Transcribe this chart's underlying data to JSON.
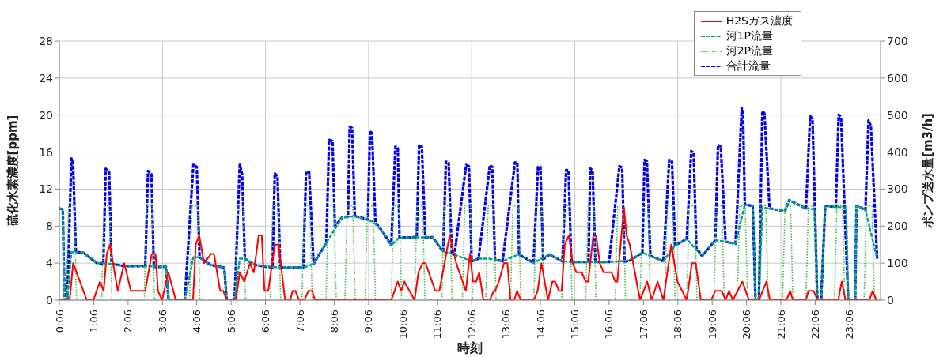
{
  "chart_data": {
    "type": "line",
    "xlabel": "時刻",
    "ylabel": "硫化水素濃度[ppm]",
    "y2label": "ポンプ送水量[m3/h]",
    "xlim": [
      0.1,
      24
    ],
    "xticks": [
      {
        "value": 0.1,
        "label": "0:06"
      },
      {
        "value": 1.1,
        "label": "1:06"
      },
      {
        "value": 2.1,
        "label": "2:06"
      },
      {
        "value": 3.1,
        "label": "3:06"
      },
      {
        "value": 4.1,
        "label": "4:06"
      },
      {
        "value": 5.1,
        "label": "5:06"
      },
      {
        "value": 6.1,
        "label": "6:06"
      },
      {
        "value": 7.1,
        "label": "7:06"
      },
      {
        "value": 8.1,
        "label": "8:06"
      },
      {
        "value": 9.1,
        "label": "9:06"
      },
      {
        "value": 10.1,
        "label": "10:06"
      },
      {
        "value": 11.1,
        "label": "11:06"
      },
      {
        "value": 12.1,
        "label": "12:06"
      },
      {
        "value": 13.1,
        "label": "13:06"
      },
      {
        "value": 14.1,
        "label": "14:06"
      },
      {
        "value": 15.1,
        "label": "15:06"
      },
      {
        "value": 16.1,
        "label": "16:06"
      },
      {
        "value": 17.1,
        "label": "17:06"
      },
      {
        "value": 18.1,
        "label": "18:06"
      },
      {
        "value": 19.1,
        "label": "19:06"
      },
      {
        "value": 20.1,
        "label": "20:06"
      },
      {
        "value": 21.1,
        "label": "21:06"
      },
      {
        "value": 22.1,
        "label": "22:06"
      },
      {
        "value": 23.1,
        "label": "23:06"
      }
    ],
    "ylim": [
      0,
      28
    ],
    "yticks": [
      0,
      4,
      8,
      12,
      16,
      20,
      24,
      28
    ],
    "y2lim": [
      0,
      700
    ],
    "y2ticks": [
      0,
      100,
      200,
      300,
      400,
      500,
      600,
      700
    ],
    "grid": true,
    "legend": "top right",
    "marker": "none",
    "series": [
      {
        "name": "H2Sガス濃度",
        "color": "#ff0000",
        "line_style": "solid",
        "x": [
          0.1,
          0.4,
          0.5,
          0.9,
          1.09,
          1.28,
          1.39,
          1.48,
          1.57,
          1.8,
          1.99,
          2.18,
          2.6,
          2.79,
          2.9,
          2.97,
          3.09,
          3.27,
          3.49,
          3.99,
          4.07,
          4.17,
          4.31,
          4.52,
          4.6,
          4.78,
          4.87,
          4.97,
          5.24,
          5.35,
          5.48,
          5.65,
          5.76,
          5.9,
          5.99,
          6.07,
          6.18,
          6.37,
          6.48,
          6.67,
          6.82,
          6.89,
          6.97,
          7.08,
          7.23,
          7.35,
          7.46,
          7.54,
          9.76,
          9.95,
          10.05,
          10.14,
          10.44,
          10.55,
          10.67,
          10.76,
          11.04,
          11.16,
          11.46,
          11.65,
          11.93,
          12.05,
          12.14,
          12.23,
          12.32,
          12.44,
          12.63,
          12.74,
          12.78,
          12.89,
          13.04,
          13.14,
          13.23,
          13.34,
          13.42,
          13.53,
          13.91,
          14.02,
          14.13,
          14.32,
          14.45,
          14.53,
          14.64,
          14.72,
          14.81,
          14.93,
          15.04,
          15.15,
          15.3,
          15.42,
          15.49,
          15.64,
          15.72,
          15.83,
          15.94,
          16.17,
          16.28,
          16.34,
          16.53,
          16.61,
          16.7,
          17.0,
          17.21,
          17.34,
          17.51,
          17.68,
          17.91,
          18.09,
          18.36,
          18.51,
          18.62,
          18.77,
          19.07,
          19.19,
          19.38,
          19.49,
          19.59,
          19.7,
          19.98,
          20.17,
          20.46,
          20.68,
          20.78,
          21.26,
          21.37,
          21.45,
          21.83,
          21.9,
          22.05,
          22.17,
          22.77,
          22.87,
          22.98,
          23.67,
          23.77,
          23.88
        ],
        "values": [
          0,
          0,
          4,
          0,
          0,
          2,
          1,
          5,
          6,
          1,
          4,
          1,
          1,
          5,
          5,
          1,
          0,
          3,
          0,
          0,
          6,
          7,
          4,
          5,
          5,
          1,
          1,
          0,
          0,
          3,
          2,
          4,
          3,
          7,
          7,
          1,
          1,
          6,
          6,
          0,
          0,
          1,
          1,
          0,
          0,
          1,
          1,
          0,
          0,
          2,
          1,
          2,
          0,
          3,
          4,
          4,
          1,
          1,
          7,
          4,
          1,
          5,
          2,
          2,
          3,
          0,
          0,
          1,
          1,
          2,
          4,
          4,
          0,
          0,
          1,
          0,
          0,
          1,
          4,
          0,
          2,
          2,
          1,
          1,
          6,
          7,
          4,
          3,
          3,
          2,
          2,
          7,
          7,
          4,
          3,
          3,
          2,
          2,
          10,
          7,
          6,
          0,
          2,
          0,
          2,
          0,
          6,
          2,
          0,
          4,
          4,
          0,
          0,
          1,
          1,
          0,
          1,
          0,
          2,
          0,
          0,
          2,
          0,
          0,
          1,
          0,
          0,
          1,
          1,
          0,
          0,
          2,
          0,
          0,
          1,
          0
        ]
      },
      {
        "name": "河1P流量",
        "color": "#00a080",
        "line_style": "dashed",
        "axis": "y2",
        "x": [
          0.1,
          0.2,
          0.25,
          0.33,
          0.45,
          0.8,
          1.2,
          1.5,
          2.0,
          2.6,
          3.2,
          3.28,
          3.75,
          4.0,
          4.18,
          4.5,
          4.9,
          4.97,
          5.2,
          5.35,
          5.5,
          5.8,
          6.5,
          7.2,
          7.5,
          7.87,
          8.33,
          8.7,
          9.23,
          9.53,
          9.76,
          9.99,
          10.96,
          11.27,
          11.6,
          12.1,
          12.3,
          12.6,
          13.0,
          13.45,
          13.9,
          14.36,
          14.74,
          15.2,
          16.1,
          16.7,
          17.07,
          17.68,
          18.02,
          18.36,
          18.81,
          19.19,
          19.49,
          19.78,
          20.05,
          20.28,
          20.36,
          20.46,
          20.56,
          20.77,
          21.22,
          21.34,
          21.83,
          22.1,
          22.16,
          22.27,
          22.39,
          22.7,
          23.0,
          23.06,
          23.26,
          23.3,
          23.56,
          23.9
        ],
        "values": [
          248,
          245,
          0,
          0,
          130,
          128,
          100,
          99,
          92,
          92,
          90,
          0,
          0,
          116,
          116,
          95,
          88,
          0,
          0,
          112,
          112,
          95,
          88,
          88,
          98,
          155,
          223,
          227,
          212,
          183,
          148,
          169,
          170,
          131,
          123,
          105,
          112,
          112,
          105,
          123,
          101,
          123,
          105,
          103,
          103,
          107,
          128,
          105,
          148,
          165,
          119,
          162,
          158,
          152,
          258,
          255,
          0,
          0,
          250,
          248,
          240,
          270,
          248,
          245,
          0,
          0,
          255,
          252,
          250,
          0,
          0,
          255,
          244,
          112
        ]
      },
      {
        "name": "河2P流量",
        "color": "#33bb33",
        "line_style": "dotted",
        "axis": "y2",
        "x": [
          0.1,
          0.3,
          0.37,
          0.53,
          0.6,
          1.33,
          1.4,
          1.56,
          1.63,
          2.57,
          2.64,
          2.8,
          2.87,
          3.89,
          3.96,
          4.12,
          4.19,
          5.22,
          5.29,
          5.45,
          5.52,
          6.24,
          6.31,
          6.47,
          6.54,
          7.16,
          7.23,
          7.39,
          7.46,
          7.86,
          7.93,
          8.09,
          8.16,
          8.41,
          8.48,
          8.64,
          8.71,
          9.0,
          9.07,
          9.23,
          9.3,
          9.76,
          9.83,
          9.99,
          10.06,
          10.44,
          10.51,
          10.67,
          10.74,
          11.23,
          11.3,
          11.46,
          11.53,
          11.83,
          11.9,
          12.06,
          12.13,
          12.51,
          12.58,
          12.74,
          12.81,
          13.23,
          13.3,
          13.46,
          13.53,
          13.91,
          13.98,
          14.14,
          14.21,
          14.72,
          14.79,
          14.95,
          15.02,
          15.42,
          15.49,
          15.65,
          15.72,
          16.28,
          16.35,
          16.51,
          16.58,
          17.0,
          17.07,
          17.23,
          17.3,
          17.72,
          17.79,
          17.95,
          18.02,
          18.36,
          18.43,
          18.59,
          18.66,
          19.15,
          19.22,
          19.38,
          19.45,
          19.83,
          19.9,
          20.06,
          20.13,
          20.43,
          20.5,
          20.66,
          20.73,
          21.15,
          21.22,
          21.38,
          21.45,
          21.83,
          21.9,
          22.06,
          22.13,
          22.66,
          22.73,
          22.89,
          22.96,
          23.52,
          23.59,
          23.75,
          23.82,
          24.0
        ],
        "values": [
          0,
          0,
          255,
          255,
          0,
          0,
          255,
          255,
          0,
          0,
          255,
          255,
          0,
          0,
          255,
          255,
          0,
          0,
          255,
          255,
          0,
          0,
          255,
          255,
          0,
          0,
          255,
          255,
          0,
          0,
          255,
          255,
          0,
          0,
          255,
          255,
          0,
          0,
          255,
          255,
          0,
          0,
          255,
          255,
          0,
          0,
          255,
          255,
          0,
          0,
          255,
          255,
          0,
          0,
          255,
          255,
          0,
          0,
          255,
          255,
          0,
          0,
          255,
          255,
          0,
          0,
          255,
          255,
          0,
          0,
          255,
          255,
          0,
          0,
          255,
          255,
          0,
          0,
          255,
          255,
          0,
          0,
          255,
          255,
          0,
          0,
          255,
          255,
          0,
          0,
          255,
          255,
          0,
          0,
          255,
          255,
          0,
          0,
          255,
          255,
          0,
          0,
          255,
          255,
          0,
          0,
          255,
          255,
          0,
          0,
          255,
          255,
          0,
          0,
          255,
          255,
          0,
          0,
          255,
          255,
          0,
          0
        ]
      },
      {
        "name": "合計流量",
        "color": "#0000ee",
        "line_style": "dashed",
        "axis": "y2",
        "x": [
          0.1,
          0.2,
          0.25,
          0.33,
          0.45,
          0.5,
          0.58,
          0.8,
          1.2,
          1.38,
          1.45,
          1.55,
          1.62,
          2.0,
          2.6,
          2.68,
          2.78,
          2.85,
          3.2,
          3.28,
          3.75,
          4.0,
          4.1,
          4.18,
          4.5,
          4.9,
          4.97,
          5.2,
          5.35,
          5.42,
          5.5,
          5.8,
          6.3,
          6.37,
          6.45,
          6.53,
          7.2,
          7.28,
          7.37,
          7.5,
          7.87,
          7.95,
          8.05,
          8.12,
          8.33,
          8.5,
          8.55,
          8.62,
          8.7,
          9.08,
          9.14,
          9.2,
          9.3,
          9.53,
          9.76,
          9.88,
          9.95,
          10.0,
          10.5,
          10.57,
          10.65,
          10.75,
          10.96,
          11.27,
          11.35,
          11.43,
          11.52,
          11.6,
          11.94,
          12.02,
          12.1,
          12.3,
          12.63,
          12.7,
          12.78,
          13.0,
          13.36,
          13.43,
          13.48,
          13.9,
          14.03,
          14.1,
          14.18,
          14.36,
          14.74,
          14.85,
          14.92,
          15.0,
          15.5,
          15.55,
          15.62,
          15.7,
          16.1,
          16.4,
          16.48,
          16.55,
          16.7,
          17.07,
          17.13,
          17.2,
          17.3,
          17.68,
          17.85,
          17.93,
          18.02,
          18.36,
          18.49,
          18.56,
          18.64,
          18.81,
          19.19,
          19.27,
          19.35,
          19.49,
          19.78,
          19.96,
          20.0,
          20.05,
          20.28,
          20.36,
          20.46,
          20.56,
          20.62,
          20.77,
          21.22,
          21.34,
          21.83,
          21.95,
          22.02,
          22.16,
          22.27,
          22.39,
          22.7,
          22.78,
          22.85,
          23.06,
          23.26,
          23.3,
          23.56,
          23.65,
          23.72,
          23.9
        ],
        "values": [
          248,
          245,
          0,
          0,
          383,
          370,
          130,
          128,
          100,
          99,
          355,
          345,
          98,
          92,
          92,
          349,
          340,
          90,
          90,
          0,
          0,
          366,
          360,
          116,
          95,
          88,
          0,
          0,
          366,
          340,
          112,
          95,
          88,
          342,
          335,
          88,
          88,
          347,
          345,
          98,
          155,
          433,
          430,
          200,
          223,
          226,
          469,
          465,
          227,
          218,
          458,
          450,
          210,
          183,
          148,
          415,
          410,
          169,
          170,
          419,
          415,
          170,
          170,
          131,
          374,
          372,
          125,
          123,
          365,
          362,
          105,
          112,
          365,
          360,
          110,
          105,
          372,
          370,
          123,
          101,
          360,
          360,
          110,
          123,
          105,
          352,
          350,
          103,
          103,
          356,
          350,
          103,
          103,
          362,
          358,
          104,
          107,
          128,
          379,
          375,
          120,
          105,
          379,
          375,
          148,
          165,
          403,
          398,
          140,
          119,
          162,
          419,
          415,
          158,
          152,
          519,
          500,
          258,
          255,
          0,
          0,
          511,
          505,
          248,
          240,
          270,
          248,
          497,
          490,
          0,
          0,
          255,
          252,
          501,
          495,
          0,
          0,
          255,
          244,
          486,
          470,
          112
        ]
      }
    ]
  }
}
